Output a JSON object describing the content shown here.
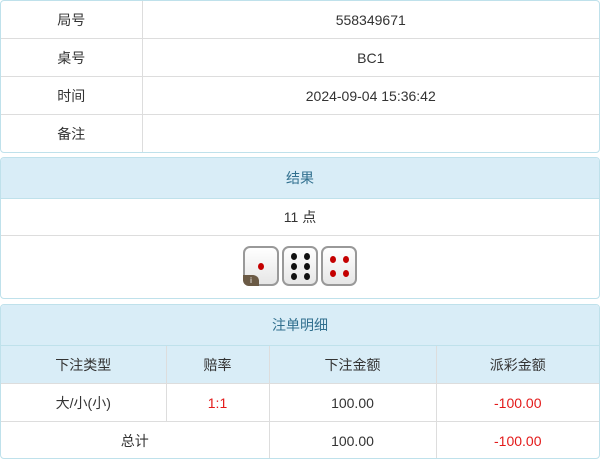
{
  "info": {
    "rows": [
      {
        "label": "局号",
        "value": "558349671"
      },
      {
        "label": "桌号",
        "value": "BC1"
      },
      {
        "label": "时间",
        "value": "2024-09-04 15:36:42"
      },
      {
        "label": "备注",
        "value": ""
      }
    ]
  },
  "result": {
    "title": "结果",
    "points": "11 点",
    "dice": [
      1,
      6,
      4
    ],
    "info_badge": "i"
  },
  "bets": {
    "title": "注单明细",
    "headers": [
      "下注类型",
      "赔率",
      "下注金额",
      "派彩金额"
    ],
    "rows": [
      {
        "type": "大/小(小)",
        "odds": "1:1",
        "amount": "100.00",
        "payout": "-100.00"
      }
    ],
    "total": {
      "label": "总计",
      "amount": "100.00",
      "payout": "-100.00"
    }
  },
  "colors": {
    "header_bg": "#d9edf7",
    "header_text": "#31708f",
    "negative": "#e31a1a"
  }
}
